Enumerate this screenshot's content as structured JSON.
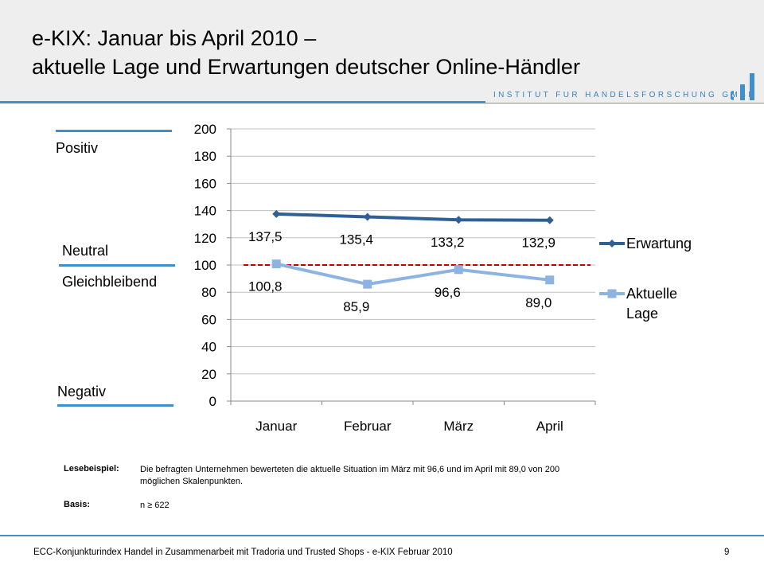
{
  "header": {
    "title_line1": "e-KIX: Januar bis April 2010 –",
    "title_line2": "aktuelle Lage und Erwartungen deutscher Online-Händler",
    "institute": "INSTITUT FUR HANDELSFORSCHUNG GMBH"
  },
  "side_labels": {
    "positive": "Positiv",
    "neutral": "Neutral",
    "same": "Gleichbleibend",
    "negative": "Negativ"
  },
  "chart_data": {
    "type": "line",
    "categories": [
      "Januar",
      "Februar",
      "März",
      "April"
    ],
    "series": [
      {
        "name": "Erwartung",
        "values": [
          137.5,
          135.4,
          133.2,
          132.9
        ],
        "labels": [
          "137,5",
          "135,4",
          "133,2",
          "132,9"
        ],
        "color": "#2f5f95",
        "marker": "diamond"
      },
      {
        "name": "Aktuelle Lage",
        "legend_lines": [
          "Aktuelle",
          "Lage"
        ],
        "values": [
          100.8,
          85.9,
          96.6,
          89.0
        ],
        "labels": [
          "100,8",
          "85,9",
          "96,6",
          "89,0"
        ],
        "color": "#8db3e2",
        "marker": "square"
      }
    ],
    "yticks": [
      "0",
      "20",
      "40",
      "60",
      "80",
      "100",
      "120",
      "140",
      "160",
      "180",
      "200"
    ],
    "ylim": [
      0,
      200
    ],
    "reference_line": 100,
    "reference_color": "#c00000",
    "grid": true,
    "legend": "right"
  },
  "notes": {
    "lesebeispiel_key": "Lesebeispiel:",
    "lesebeispiel_line1": "Die befragten Unternehmen bewerteten die aktuelle Situation im März mit 96,6 und im April mit 89,0 von 200",
    "lesebeispiel_line2": "möglichen Skalenpunkten.",
    "basis_key": "Basis:",
    "basis_text": "n ≥ 622"
  },
  "footer": {
    "text": "ECC-Konjunkturindex Handel in Zusammenarbeit mit Tradoria und Trusted Shops - e-KIX Februar 2010",
    "page": "9"
  }
}
